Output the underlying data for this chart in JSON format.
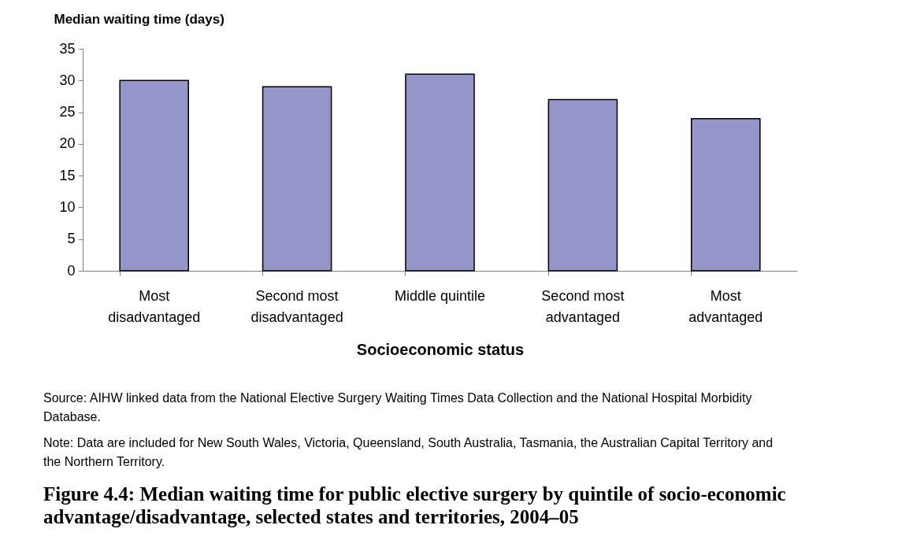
{
  "chart_data": {
    "type": "bar",
    "title": "Figure 4.4: Median waiting time for public elective surgery by quintile of socio-economic advantage/disadvantage, selected states and territories, 2004–05",
    "ylabel": "Median waiting time (days)",
    "xlabel": "Socioeconomic status",
    "categories": [
      "Most disadvantaged",
      "Second most disadvantaged",
      "Middle quintile",
      "Second most advantaged",
      "Most advantaged"
    ],
    "values": [
      30,
      29,
      31,
      27,
      24
    ],
    "color": "#9595c8",
    "ylim": [
      0,
      35
    ],
    "yticks": [
      0,
      5,
      10,
      15,
      20,
      25,
      30,
      35
    ],
    "annotations": [
      "Source: AIHW linked data from the National Elective Surgery Waiting Times Data Collection and the National Hospital Morbidity Database.",
      "Note: Data are included for New South Wales, Victoria, Queensland, South Australia, Tasmania, the Australian Capital Territory and the Northern Territory."
    ]
  }
}
